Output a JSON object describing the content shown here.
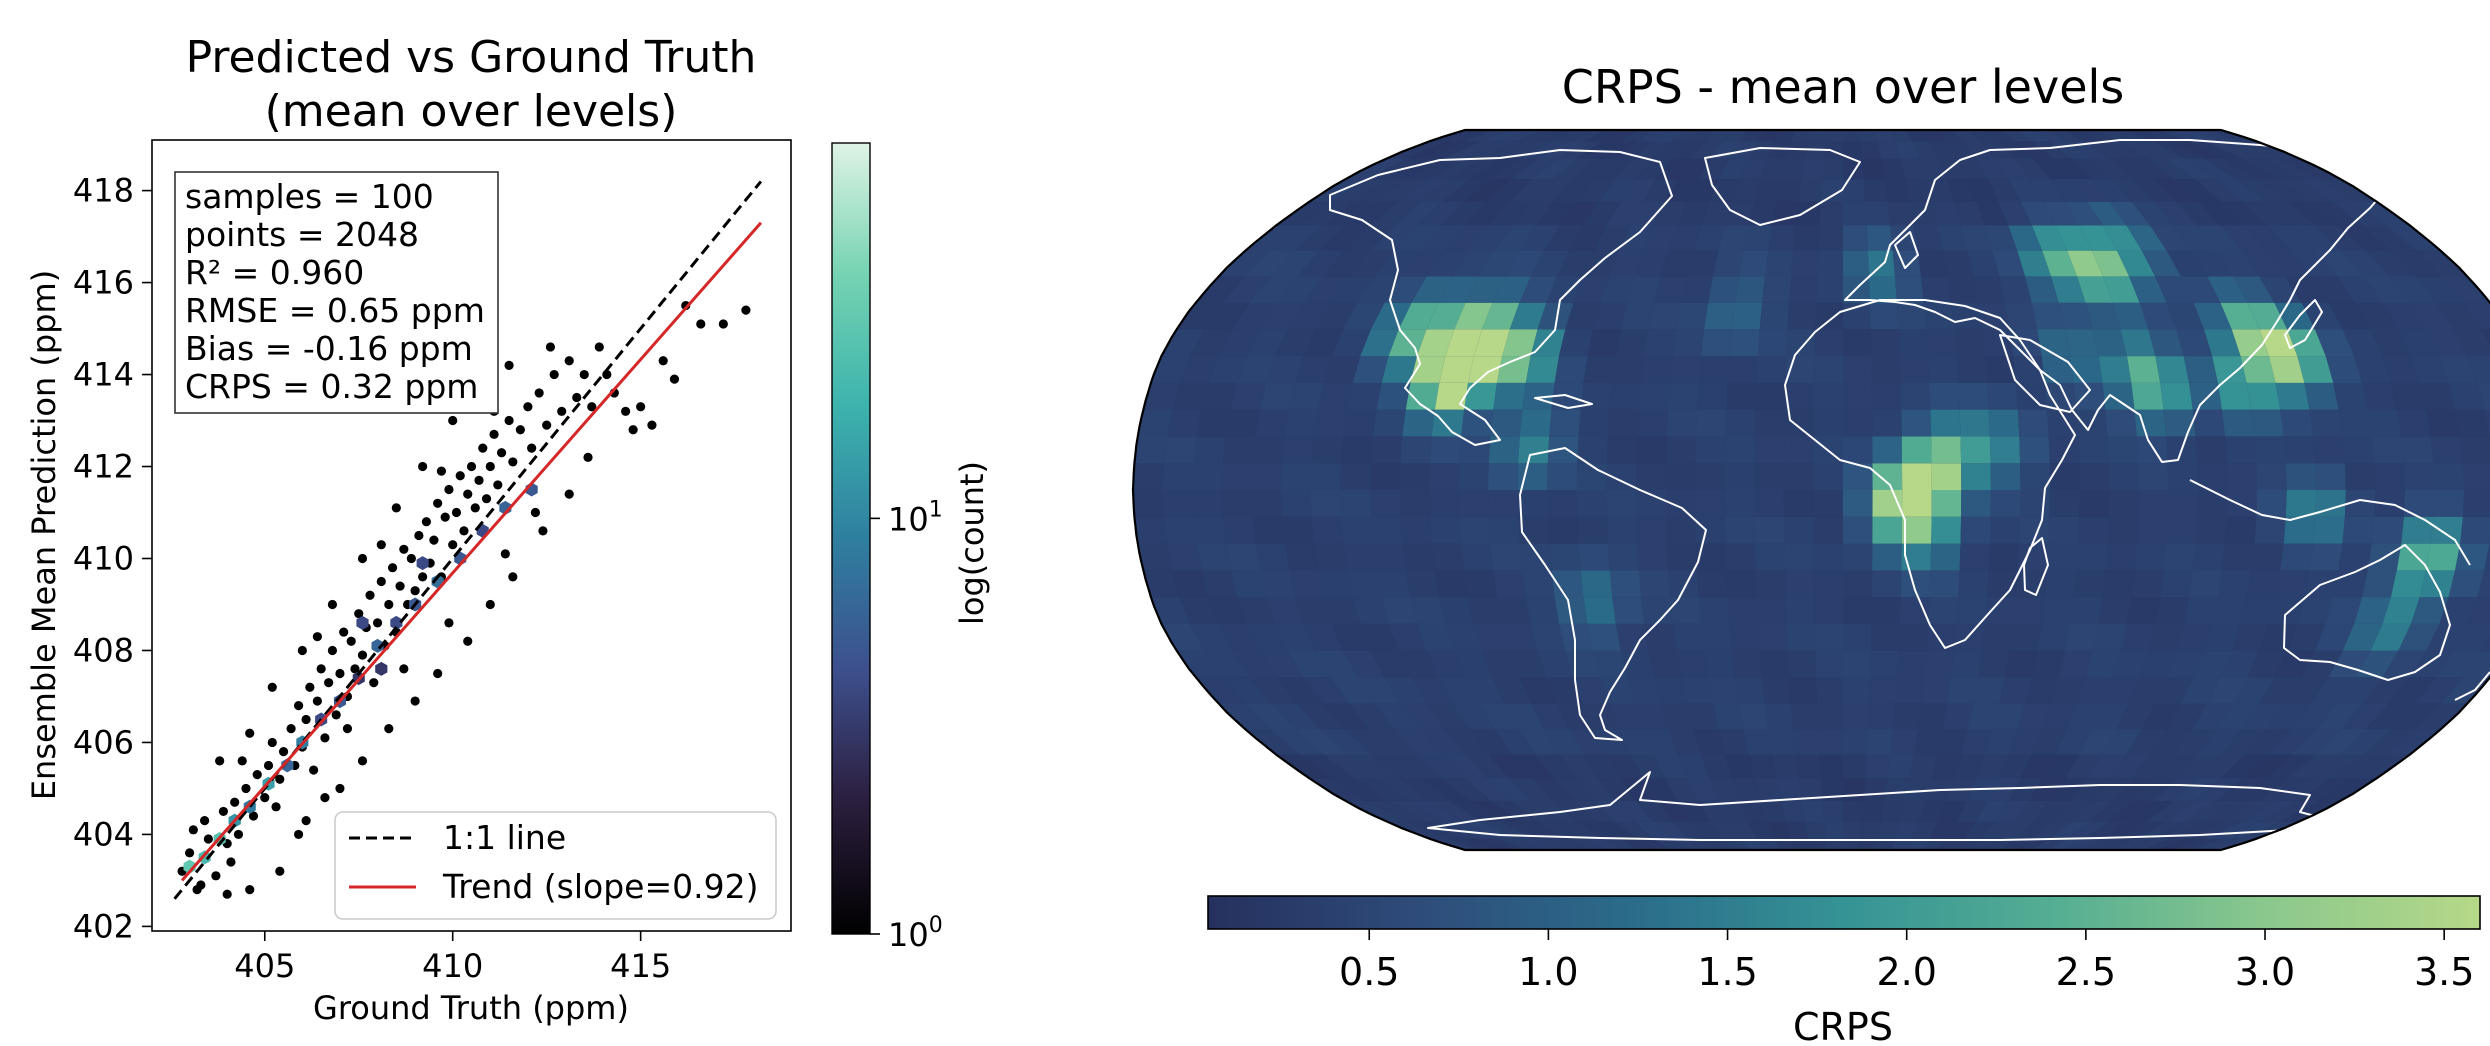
{
  "chart_data": [
    {
      "type": "scatter",
      "title": [
        "Predicted vs Ground Truth",
        "(mean over levels)"
      ],
      "xlabel": "Ground Truth (ppm)",
      "ylabel": "Ensemble Mean Prediction (ppm)",
      "xlim": [
        402.0,
        419.0
      ],
      "ylim": [
        401.9,
        419.1
      ],
      "xticks": [
        405,
        410,
        415
      ],
      "yticks": [
        402,
        404,
        406,
        408,
        410,
        412,
        414,
        416,
        418
      ],
      "grid": false,
      "stats": [
        "samples = 100",
        "points = 2048",
        "R² = 0.960",
        "RMSE = 0.65 ppm",
        "Bias = -0.16 ppm",
        "CRPS = 0.32 ppm"
      ],
      "one_to_one": {
        "label": "1:1 line",
        "color": "#000000",
        "x": [
          402.6,
          418.2
        ],
        "y": [
          402.6,
          418.2
        ]
      },
      "trend": {
        "label": "Trend (slope=0.92)",
        "color": "#d62728",
        "slope": 0.92,
        "x": [
          402.8,
          418.2
        ],
        "y": [
          403.0,
          417.3
        ]
      },
      "legend_placement": "lower-right",
      "colorbar": {
        "label": "log(count)",
        "tick_base": "10",
        "ticks": [
          {
            "exp": "0",
            "value": 1
          },
          {
            "exp": "1",
            "value": 10
          }
        ],
        "range": [
          1,
          80
        ],
        "colors": [
          "#000000",
          "#2b1e3e",
          "#3d4f8d",
          "#2f7fa0",
          "#3cb3ad",
          "#75d3b2",
          "#dff3e5"
        ]
      },
      "points": [
        [
          402.8,
          403.2
        ],
        [
          403.0,
          403.6
        ],
        [
          403.2,
          402.8
        ],
        [
          403.5,
          403.9
        ],
        [
          403.4,
          404.3
        ],
        [
          403.7,
          403.1
        ],
        [
          403.9,
          404.5
        ],
        [
          403.1,
          404.1
        ],
        [
          404.0,
          403.8
        ],
        [
          404.2,
          404.7
        ],
        [
          404.3,
          404.0
        ],
        [
          404.5,
          405.0
        ],
        [
          404.1,
          403.4
        ],
        [
          404.7,
          404.4
        ],
        [
          404.8,
          405.3
        ],
        [
          404.4,
          405.6
        ],
        [
          405.0,
          404.8
        ],
        [
          405.1,
          405.5
        ],
        [
          405.2,
          406.0
        ],
        [
          405.4,
          405.2
        ],
        [
          405.5,
          405.8
        ],
        [
          405.3,
          404.6
        ],
        [
          405.7,
          406.3
        ],
        [
          405.8,
          405.5
        ],
        [
          405.9,
          406.8
        ],
        [
          406.0,
          405.9
        ],
        [
          406.1,
          406.5
        ],
        [
          406.2,
          407.2
        ],
        [
          406.3,
          405.4
        ],
        [
          406.4,
          406.9
        ],
        [
          406.5,
          407.6
        ],
        [
          406.6,
          406.1
        ],
        [
          406.7,
          407.3
        ],
        [
          406.8,
          408.0
        ],
        [
          406.9,
          406.6
        ],
        [
          407.0,
          407.5
        ],
        [
          407.1,
          408.4
        ],
        [
          407.2,
          407.0
        ],
        [
          407.3,
          408.2
        ],
        [
          407.4,
          407.6
        ],
        [
          407.5,
          408.8
        ],
        [
          407.6,
          407.9
        ],
        [
          407.7,
          408.5
        ],
        [
          407.8,
          409.2
        ],
        [
          407.9,
          407.3
        ],
        [
          408.0,
          408.6
        ],
        [
          408.1,
          409.5
        ],
        [
          408.2,
          408.1
        ],
        [
          408.3,
          409.0
        ],
        [
          408.4,
          409.8
        ],
        [
          408.5,
          408.4
        ],
        [
          408.6,
          409.4
        ],
        [
          408.7,
          410.2
        ],
        [
          408.8,
          409.0
        ],
        [
          408.9,
          410.0
        ],
        [
          409.0,
          409.3
        ],
        [
          409.1,
          410.5
        ],
        [
          409.2,
          409.6
        ],
        [
          409.3,
          410.8
        ],
        [
          409.4,
          409.9
        ],
        [
          409.5,
          410.4
        ],
        [
          409.6,
          411.2
        ],
        [
          409.7,
          409.6
        ],
        [
          409.8,
          410.9
        ],
        [
          409.9,
          411.5
        ],
        [
          410.0,
          410.3
        ],
        [
          410.1,
          411.0
        ],
        [
          410.2,
          411.8
        ],
        [
          410.3,
          410.6
        ],
        [
          410.4,
          411.4
        ],
        [
          410.5,
          412.0
        ],
        [
          410.6,
          411.1
        ],
        [
          410.7,
          411.7
        ],
        [
          410.8,
          412.4
        ],
        [
          410.9,
          411.3
        ],
        [
          411.0,
          412.0
        ],
        [
          411.1,
          412.7
        ],
        [
          411.2,
          411.6
        ],
        [
          411.3,
          412.3
        ],
        [
          411.5,
          413.0
        ],
        [
          411.6,
          412.1
        ],
        [
          411.8,
          412.8
        ],
        [
          412.0,
          413.3
        ],
        [
          412.1,
          412.4
        ],
        [
          412.3,
          413.6
        ],
        [
          412.5,
          412.9
        ],
        [
          412.7,
          414.0
        ],
        [
          412.9,
          413.2
        ],
        [
          413.1,
          414.3
        ],
        [
          413.3,
          413.5
        ],
        [
          413.5,
          414.0
        ],
        [
          413.7,
          413.3
        ],
        [
          413.9,
          414.6
        ],
        [
          414.1,
          414.0
        ],
        [
          414.3,
          413.6
        ],
        [
          414.6,
          413.2
        ],
        [
          415.0,
          413.3
        ],
        [
          415.3,
          412.9
        ],
        [
          415.6,
          414.3
        ],
        [
          415.9,
          413.9
        ],
        [
          416.2,
          415.5
        ],
        [
          416.6,
          415.1
        ],
        [
          417.2,
          415.1
        ],
        [
          417.8,
          415.4
        ],
        [
          406.1,
          404.3
        ],
        [
          406.6,
          404.8
        ],
        [
          407.0,
          405.0
        ],
        [
          407.6,
          405.6
        ],
        [
          408.3,
          406.3
        ],
        [
          409.0,
          406.9
        ],
        [
          409.6,
          407.5
        ],
        [
          410.4,
          408.2
        ],
        [
          411.0,
          409.0
        ],
        [
          411.6,
          409.6
        ],
        [
          412.4,
          410.6
        ],
        [
          413.1,
          411.4
        ],
        [
          405.2,
          407.2
        ],
        [
          406.0,
          408.0
        ],
        [
          406.8,
          409.0
        ],
        [
          407.6,
          410.0
        ],
        [
          408.5,
          411.1
        ],
        [
          409.2,
          412.0
        ],
        [
          410.0,
          413.0
        ],
        [
          410.8,
          413.6
        ],
        [
          411.5,
          414.2
        ],
        [
          403.8,
          405.6
        ],
        [
          404.6,
          406.2
        ],
        [
          405.4,
          403.2
        ],
        [
          404.0,
          402.7
        ],
        [
          404.6,
          402.8
        ],
        [
          403.3,
          402.9
        ],
        [
          412.2,
          411.0
        ],
        [
          413.6,
          412.2
        ],
        [
          414.8,
          412.8
        ],
        [
          405.9,
          404.0
        ],
        [
          407.2,
          406.3
        ],
        [
          408.7,
          407.6
        ],
        [
          409.9,
          408.6
        ],
        [
          411.4,
          410.1
        ],
        [
          406.4,
          408.3
        ],
        [
          408.1,
          410.3
        ],
        [
          409.7,
          411.9
        ],
        [
          411.1,
          413.2
        ],
        [
          412.6,
          414.6
        ]
      ],
      "hexbins": [
        {
          "x": 403.0,
          "y": 403.3,
          "c": 30
        },
        {
          "x": 403.4,
          "y": 403.5,
          "c": 22
        },
        {
          "x": 403.8,
          "y": 403.9,
          "c": 26
        },
        {
          "x": 404.2,
          "y": 404.3,
          "c": 12
        },
        {
          "x": 404.6,
          "y": 404.6,
          "c": 8
        },
        {
          "x": 405.1,
          "y": 405.1,
          "c": 14
        },
        {
          "x": 405.6,
          "y": 405.5,
          "c": 6
        },
        {
          "x": 406.0,
          "y": 406.0,
          "c": 9
        },
        {
          "x": 406.5,
          "y": 406.5,
          "c": 4
        },
        {
          "x": 407.0,
          "y": 406.9,
          "c": 5
        },
        {
          "x": 407.5,
          "y": 407.4,
          "c": 3
        },
        {
          "x": 408.0,
          "y": 408.1,
          "c": 6
        },
        {
          "x": 408.5,
          "y": 408.6,
          "c": 4
        },
        {
          "x": 409.0,
          "y": 409.0,
          "c": 5
        },
        {
          "x": 409.6,
          "y": 409.5,
          "c": 7
        },
        {
          "x": 410.2,
          "y": 410.0,
          "c": 5
        },
        {
          "x": 410.8,
          "y": 410.6,
          "c": 4
        },
        {
          "x": 411.4,
          "y": 411.1,
          "c": 6
        },
        {
          "x": 412.1,
          "y": 411.5,
          "c": 5
        },
        {
          "x": 407.6,
          "y": 408.6,
          "c": 4
        },
        {
          "x": 408.1,
          "y": 407.6,
          "c": 3
        },
        {
          "x": 409.2,
          "y": 409.9,
          "c": 4
        }
      ]
    },
    {
      "type": "heatmap",
      "title": "CRPS - mean over levels",
      "projection": "Robinson",
      "colorbar": {
        "label": "CRPS",
        "ticks": [
          "0.5",
          "1.0",
          "1.5",
          "2.0",
          "2.5",
          "3.0",
          "3.5"
        ],
        "range": [
          0.05,
          3.6
        ],
        "colors": [
          "#26305e",
          "#2e4c7a",
          "#2b6c8a",
          "#359395",
          "#55ae93",
          "#8bc88d",
          "#b6d888"
        ]
      },
      "background_value": 0.3,
      "hotspots": [
        {
          "lon": -100,
          "lat": 30,
          "value": 3.3
        },
        {
          "lon": -103,
          "lat": 24,
          "value": 2.8
        },
        {
          "lon": -85,
          "lat": 30,
          "value": 2.3
        },
        {
          "lon": -97,
          "lat": 36,
          "value": 1.8
        },
        {
          "lon": -112,
          "lat": 38,
          "value": 1.4
        },
        {
          "lon": -118,
          "lat": 34,
          "value": 1.2
        },
        {
          "lon": -80,
          "lat": 10,
          "value": 1.2
        },
        {
          "lon": -65,
          "lat": -25,
          "value": 1.0
        },
        {
          "lon": 20,
          "lat": 2,
          "value": 3.0
        },
        {
          "lon": 14,
          "lat": -4,
          "value": 2.3
        },
        {
          "lon": 28,
          "lat": 8,
          "value": 1.6
        },
        {
          "lon": 22,
          "lat": -10,
          "value": 1.2
        },
        {
          "lon": 40,
          "lat": 10,
          "value": 1.0
        },
        {
          "lon": 75,
          "lat": 50,
          "value": 2.6
        },
        {
          "lon": 62,
          "lat": 52,
          "value": 1.8
        },
        {
          "lon": 88,
          "lat": 56,
          "value": 1.3
        },
        {
          "lon": 118,
          "lat": 30,
          "value": 3.0
        },
        {
          "lon": 110,
          "lat": 36,
          "value": 2.0
        },
        {
          "lon": 104,
          "lat": 24,
          "value": 1.6
        },
        {
          "lon": 82,
          "lat": 22,
          "value": 1.6
        },
        {
          "lon": 77,
          "lat": 28,
          "value": 1.2
        },
        {
          "lon": 150,
          "lat": -15,
          "value": 2.2
        },
        {
          "lon": 145,
          "lat": -30,
          "value": 1.2
        },
        {
          "lon": 120,
          "lat": -5,
          "value": 1.2
        },
        {
          "lon": 10,
          "lat": 50,
          "value": 1.0
        },
        {
          "lon": -30,
          "lat": 40,
          "value": 0.8
        },
        {
          "lon": 60,
          "lat": 30,
          "value": 0.8
        }
      ]
    }
  ]
}
